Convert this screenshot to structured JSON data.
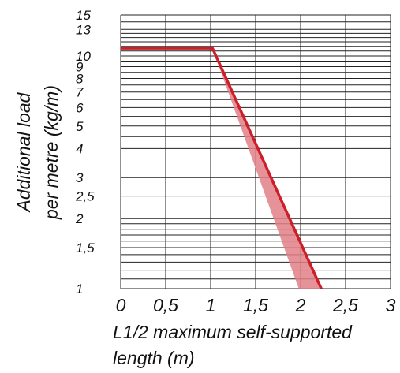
{
  "chart_data": {
    "type": "line",
    "y_scale": "log",
    "grid": true,
    "xlabel": [
      "L1/2 maximum self-supported",
      "length (m)"
    ],
    "ylabel": [
      "Additional load",
      "per metre (kg/m)"
    ],
    "xlim": [
      0,
      3
    ],
    "ylim": [
      1,
      15
    ],
    "x_ticks": [
      {
        "value": 0,
        "label": "0"
      },
      {
        "value": 0.5,
        "label": "0,5"
      },
      {
        "value": 1,
        "label": "1"
      },
      {
        "value": 1.5,
        "label": "1,5"
      },
      {
        "value": 2,
        "label": "2"
      },
      {
        "value": 2.5,
        "label": "2,5"
      },
      {
        "value": 3,
        "label": "3"
      }
    ],
    "y_ticks": [
      {
        "value": 1,
        "label": "1"
      },
      {
        "value": 1.5,
        "label": "1,5"
      },
      {
        "value": 2,
        "label": "2"
      },
      {
        "value": 2.5,
        "label": "2,5"
      },
      {
        "value": 3,
        "label": "3"
      },
      {
        "value": 4,
        "label": "4"
      },
      {
        "value": 5,
        "label": "5"
      },
      {
        "value": 6,
        "label": "6"
      },
      {
        "value": 7,
        "label": "7"
      },
      {
        "value": 8,
        "label": "8"
      },
      {
        "value": 9,
        "label": "9"
      },
      {
        "value": 10,
        "label": "10"
      },
      {
        "value": 13,
        "label": "13"
      },
      {
        "value": 15,
        "label": "15"
      }
    ],
    "y_gridlines": [
      1,
      1.1,
      1.2,
      1.3,
      1.4,
      1.5,
      1.6,
      1.7,
      1.8,
      1.9,
      2,
      2.5,
      3,
      3.5,
      4,
      4.5,
      5,
      5.5,
      6,
      6.5,
      7,
      7.5,
      8,
      8.5,
      9,
      9.5,
      10,
      10.5,
      11,
      11.5,
      12,
      12.5,
      13,
      14,
      15
    ],
    "x_gridlines": [
      0,
      0.5,
      1,
      1.5,
      2,
      2.5,
      3
    ],
    "series": [
      {
        "color": "#cc1f2a",
        "x": [
          0,
          1.02,
          2.23
        ],
        "y": [
          10.8,
          10.8,
          1
        ]
      }
    ],
    "band": {
      "color": "#e07f86",
      "polygon": [
        [
          1.02,
          10.8
        ],
        [
          2.23,
          1
        ],
        [
          1.98,
          1
        ]
      ]
    }
  }
}
